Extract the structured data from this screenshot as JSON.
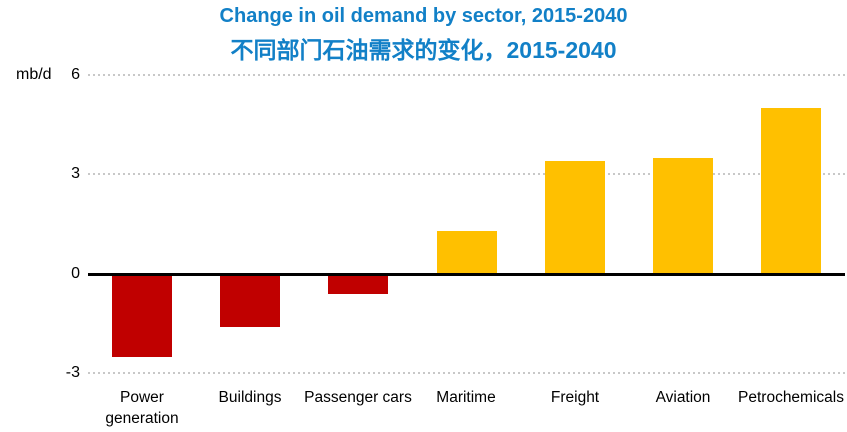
{
  "header": {
    "title": "Change in oil demand by sector, 2015-2040",
    "subtitle": "不同部门石油需求的变化，2015-2040"
  },
  "colors": {
    "title_blue": "#1280c7",
    "negative_red": "#c00000",
    "positive_gold": "#ffc000",
    "gridline_gray": "#c8c8c8",
    "zero_line": "#000000",
    "label_black": "#000000"
  },
  "chart_data": {
    "type": "bar",
    "title": "Change in oil demand by sector, 2015-2040",
    "subtitle": "不同部门石油需求的变化，2015-2040",
    "unit_label": "mb/d",
    "categories": [
      "Power generation",
      "Buildings",
      "Passenger cars",
      "Maritime",
      "Freight",
      "Aviation",
      "Petrochemicals"
    ],
    "values": [
      -2.5,
      -1.6,
      -0.6,
      1.3,
      3.4,
      3.5,
      5.0
    ],
    "bar_colors": [
      "#c00000",
      "#c00000",
      "#c00000",
      "#ffc000",
      "#ffc000",
      "#ffc000",
      "#ffc000"
    ],
    "yticks": [
      6,
      3,
      0,
      -3
    ],
    "ytick_labels": [
      "6",
      "3",
      "0",
      "-3"
    ],
    "ylim": [
      -3,
      6
    ],
    "xlabel": "",
    "ylabel": "mb/d",
    "grid": "horizontal dotted gridlines at 6, 3, -3; solid black zero axis",
    "legend": "none"
  }
}
